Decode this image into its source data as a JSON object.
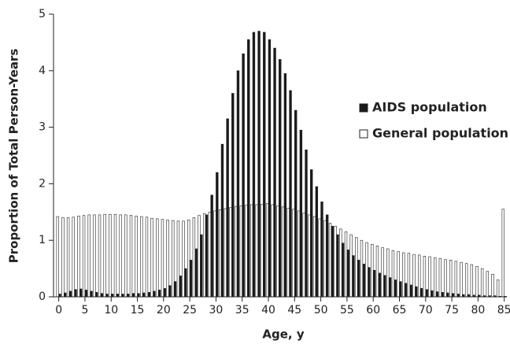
{
  "chart_data": {
    "type": "bar",
    "xlabel": "Age, y",
    "ylabel": "Proportion of Total Person-Years",
    "x": [
      0,
      1,
      2,
      3,
      4,
      5,
      6,
      7,
      8,
      9,
      10,
      11,
      12,
      13,
      14,
      15,
      16,
      17,
      18,
      19,
      20,
      21,
      22,
      23,
      24,
      25,
      26,
      27,
      28,
      29,
      30,
      31,
      32,
      33,
      34,
      35,
      36,
      37,
      38,
      39,
      40,
      41,
      42,
      43,
      44,
      45,
      46,
      47,
      48,
      49,
      50,
      51,
      52,
      53,
      54,
      55,
      56,
      57,
      58,
      59,
      60,
      61,
      62,
      63,
      64,
      65,
      66,
      67,
      68,
      69,
      70,
      71,
      72,
      73,
      74,
      75,
      76,
      77,
      78,
      79,
      80,
      81,
      82,
      83,
      84,
      85
    ],
    "series": [
      {
        "name": "AIDS population",
        "color": "#1a1a1a",
        "values": [
          0.05,
          0.07,
          0.1,
          0.13,
          0.14,
          0.12,
          0.1,
          0.08,
          0.06,
          0.05,
          0.05,
          0.05,
          0.05,
          0.05,
          0.06,
          0.06,
          0.07,
          0.08,
          0.1,
          0.12,
          0.15,
          0.2,
          0.27,
          0.37,
          0.5,
          0.65,
          0.85,
          1.1,
          1.45,
          1.8,
          2.2,
          2.7,
          3.15,
          3.6,
          4.0,
          4.3,
          4.55,
          4.68,
          4.7,
          4.68,
          4.55,
          4.4,
          4.2,
          3.95,
          3.65,
          3.3,
          2.95,
          2.6,
          2.25,
          1.95,
          1.68,
          1.45,
          1.25,
          1.1,
          0.95,
          0.83,
          0.73,
          0.65,
          0.58,
          0.52,
          0.47,
          0.42,
          0.38,
          0.34,
          0.3,
          0.27,
          0.24,
          0.21,
          0.18,
          0.15,
          0.13,
          0.11,
          0.09,
          0.08,
          0.07,
          0.06,
          0.05,
          0.04,
          0.04,
          0.03,
          0.03,
          0.02,
          0.02,
          0.02,
          0.01,
          0.01
        ]
      },
      {
        "name": "General population",
        "color": "#ffffff",
        "values": [
          1.42,
          1.4,
          1.4,
          1.41,
          1.43,
          1.44,
          1.45,
          1.45,
          1.45,
          1.46,
          1.46,
          1.46,
          1.45,
          1.45,
          1.44,
          1.43,
          1.42,
          1.41,
          1.39,
          1.38,
          1.37,
          1.36,
          1.35,
          1.34,
          1.34,
          1.36,
          1.4,
          1.44,
          1.47,
          1.5,
          1.52,
          1.54,
          1.56,
          1.58,
          1.6,
          1.61,
          1.62,
          1.63,
          1.63,
          1.64,
          1.65,
          1.63,
          1.61,
          1.59,
          1.57,
          1.55,
          1.52,
          1.48,
          1.45,
          1.42,
          1.38,
          1.35,
          1.3,
          1.25,
          1.2,
          1.15,
          1.1,
          1.05,
          1.0,
          0.96,
          0.93,
          0.9,
          0.87,
          0.85,
          0.82,
          0.8,
          0.78,
          0.77,
          0.75,
          0.74,
          0.72,
          0.71,
          0.69,
          0.68,
          0.66,
          0.65,
          0.63,
          0.61,
          0.59,
          0.57,
          0.54,
          0.5,
          0.45,
          0.4,
          0.3,
          1.55
        ]
      }
    ],
    "xlim": [
      -1,
      85.5
    ],
    "xticks": [
      0,
      5,
      10,
      15,
      20,
      25,
      30,
      35,
      40,
      45,
      50,
      55,
      60,
      65,
      70,
      75,
      80,
      85
    ],
    "ylim": [
      0,
      5
    ],
    "yticks": [
      0,
      1,
      2,
      3,
      4,
      5
    ],
    "legend": "right"
  }
}
